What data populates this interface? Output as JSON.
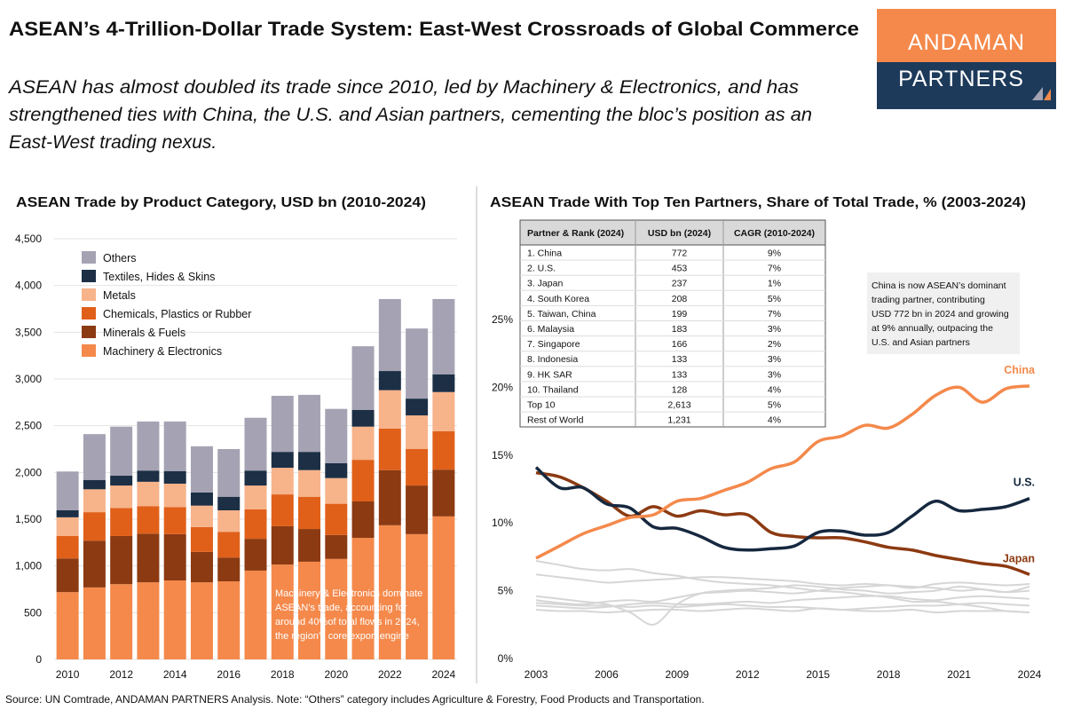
{
  "title": "ASEAN’s 4-Trillion-Dollar Trade System: East-West Crossroads of Global Commerce",
  "subtitle": [
    "ASEAN has almost doubled its trade since 2010, led by Machinery & Electronics, and has",
    "strengthened ties with China, the U.S. and Asian partners, cementing the bloc’s position as an",
    "East-West trading nexus."
  ],
  "logo": [
    "ANDAMAN",
    "PARTNERS"
  ],
  "source": "Source: UN Comtrade, ANDAMAN PARTNERS Analysis. Note: “Others” category includes Agriculture & Forestry, Food Products and Transportation.",
  "table": {
    "columns": [
      "Partner & Rank (2024)",
      "USD bn (2024)",
      "CAGR (2010-2024)"
    ],
    "rows": [
      [
        "1. China",
        "772",
        "9%"
      ],
      [
        "2. U.S.",
        "453",
        "7%"
      ],
      [
        "3. Japan",
        "237",
        "1%"
      ],
      [
        "4. South Korea",
        "208",
        "5%"
      ],
      [
        "5. Taiwan, China",
        "199",
        "7%"
      ],
      [
        "6. Malaysia",
        "183",
        "3%"
      ],
      [
        "7. Singapore",
        "166",
        "2%"
      ],
      [
        "8. Indonesia",
        "133",
        "3%"
      ],
      [
        "9. HK SAR",
        "133",
        "3%"
      ],
      [
        "10. Thailand",
        "128",
        "4%"
      ],
      [
        "Top 10",
        "2,613",
        "5%"
      ],
      [
        "Rest of World",
        "1,231",
        "4%"
      ]
    ]
  },
  "chart_data": [
    {
      "type": "stacked-bar",
      "title": "ASEAN Trade by Product Category, USD bn (2010-2024)",
      "categories": [
        2010,
        null,
        2012,
        null,
        2014,
        null,
        2016,
        null,
        2018,
        null,
        2020,
        null,
        2022,
        null,
        2024
      ],
      "series": [
        {
          "name": "Machinery & Electronics",
          "color": "#f4894b",
          "values": [
            720,
            770,
            805,
            825,
            845,
            825,
            835,
            950,
            1015,
            1045,
            1075,
            1300,
            1435,
            1340,
            1530
          ]
        },
        {
          "name": "Minerals & Fuels",
          "color": "#8c3a12",
          "values": [
            360,
            500,
            515,
            520,
            495,
            325,
            255,
            340,
            410,
            350,
            255,
            390,
            590,
            520,
            500
          ]
        },
        {
          "name": "Chemicals, Plastics or Rubber",
          "color": "#e0601a",
          "values": [
            240,
            305,
            300,
            295,
            290,
            265,
            275,
            315,
            340,
            345,
            335,
            445,
            445,
            390,
            410
          ]
        },
        {
          "name": "Metals",
          "color": "#f7b38a",
          "values": [
            200,
            245,
            240,
            260,
            250,
            230,
            230,
            255,
            285,
            285,
            275,
            355,
            410,
            360,
            420
          ]
        },
        {
          "name": "Textiles, Hides & Skins",
          "color": "#1c2f45",
          "values": [
            75,
            100,
            105,
            120,
            135,
            140,
            145,
            160,
            170,
            195,
            160,
            180,
            205,
            180,
            190
          ]
        },
        {
          "name": "Others",
          "color": "#a5a3b3",
          "values": [
            415,
            490,
            525,
            525,
            530,
            495,
            510,
            565,
            600,
            610,
            580,
            680,
            770,
            750,
            805
          ]
        }
      ],
      "ylim": [
        0,
        4500
      ],
      "yticks": [
        0,
        500,
        {
          "value": 1000,
          "label": "1,000"
        },
        {
          "value": 1500,
          "label": "1,500"
        },
        {
          "value": 2000,
          "label": "2,000"
        },
        {
          "value": 2500,
          "label": "2,500"
        },
        {
          "value": 3000,
          "label": "3,000"
        },
        {
          "value": 3500,
          "label": "3,500"
        },
        {
          "value": 4000,
          "label": "4,000"
        },
        {
          "value": 4500,
          "label": "4,500"
        }
      ],
      "grid": true,
      "legend": "top-left",
      "annotation": [
        "Machinery & Electronics dominate",
        "ASEAN’s trade, accounting for",
        "around 40%of total flows in 2024,",
        "the region’s core export engine"
      ]
    },
    {
      "type": "line",
      "title": "ASEAN Trade With Top Ten Partners, Share of Total Trade, % (2003-2024)",
      "x": [
        2003,
        2004,
        2005,
        2006,
        2007,
        2008,
        2009,
        2010,
        2011,
        2012,
        2013,
        2014,
        2015,
        2016,
        2017,
        2018,
        2019,
        2020,
        2021,
        2022,
        2023,
        2024
      ],
      "series": [
        {
          "color": "#d6d6d6",
          "values": [
            7.2,
            6.9,
            6.6,
            6.5,
            6.6,
            6.3,
            6.1,
            5.8,
            5.6,
            5.5,
            5.4,
            5.2,
            5.0,
            4.9,
            4.7,
            4.5,
            4.2,
            4.2,
            4.0,
            3.8,
            3.5,
            3.4
          ]
        },
        {
          "color": "#d6d6d6",
          "values": [
            6.2,
            6.0,
            5.8,
            5.6,
            5.7,
            5.8,
            5.9,
            6.0,
            6.0,
            5.9,
            5.8,
            5.7,
            5.5,
            5.4,
            5.5,
            5.4,
            5.3,
            5.2,
            5.0,
            5.1,
            4.9,
            5.0
          ]
        },
        {
          "color": "#d6d6d6",
          "values": [
            4.6,
            4.4,
            4.2,
            4.0,
            3.4,
            2.5,
            4.0,
            4.8,
            5.0,
            5.1,
            5.2,
            5.4,
            5.3,
            5.1,
            5.0,
            4.8,
            4.9,
            5.0,
            5.3,
            5.1,
            4.9,
            5.3
          ]
        },
        {
          "color": "#d6d6d6",
          "values": [
            4.3,
            4.1,
            4.0,
            4.2,
            4.3,
            4.2,
            4.5,
            4.8,
            4.9,
            5.0,
            4.9,
            4.8,
            5.0,
            5.2,
            5.3,
            5.4,
            5.2,
            5.5,
            5.6,
            5.5,
            5.4,
            5.5
          ]
        },
        {
          "color": "#d6d6d6",
          "values": [
            3.9,
            3.8,
            3.7,
            3.8,
            4.0,
            4.1,
            4.0,
            4.0,
            4.1,
            4.2,
            4.1,
            4.3,
            4.4,
            4.5,
            4.6,
            4.6,
            4.4,
            4.3,
            4.5,
            4.6,
            4.5,
            4.4
          ]
        },
        {
          "color": "#d6d6d6",
          "values": [
            4.1,
            4.0,
            3.9,
            3.9,
            3.8,
            3.9,
            3.8,
            3.9,
            4.0,
            3.9,
            3.8,
            3.8,
            3.7,
            3.6,
            3.7,
            3.8,
            3.9,
            3.9,
            4.0,
            4.1,
            4.0,
            3.9
          ]
        },
        {
          "color": "#d6d6d6",
          "values": [
            3.6,
            3.5,
            3.5,
            3.4,
            3.5,
            3.6,
            3.6,
            3.5,
            3.6,
            3.7,
            3.6,
            3.5,
            3.7,
            3.6,
            3.5,
            3.5,
            3.6,
            3.4,
            3.5,
            3.5,
            3.5,
            3.4
          ]
        },
        {
          "name": "Japan",
          "color": "#8c3a12",
          "values": [
            13.7,
            13.4,
            12.6,
            11.6,
            10.5,
            11.2,
            10.5,
            10.9,
            10.6,
            10.6,
            9.3,
            9.0,
            8.9,
            8.9,
            8.6,
            8.2,
            8.0,
            7.6,
            7.3,
            7.0,
            6.8,
            6.2
          ]
        },
        {
          "name": "U.S.",
          "color": "#16283f",
          "values": [
            14.1,
            12.6,
            12.6,
            11.4,
            11.1,
            9.7,
            9.6,
            9.0,
            8.2,
            8.0,
            8.1,
            8.3,
            9.3,
            9.4,
            9.1,
            9.3,
            10.5,
            11.6,
            10.9,
            11.0,
            11.2,
            11.8
          ]
        },
        {
          "name": "China",
          "color": "#f4894b",
          "values": [
            7.4,
            8.3,
            9.2,
            9.8,
            10.4,
            10.6,
            11.6,
            11.8,
            12.4,
            13.0,
            14.0,
            14.5,
            16.0,
            16.4,
            17.2,
            17.0,
            18.0,
            19.4,
            20.0,
            18.9,
            19.9,
            20.1
          ]
        }
      ],
      "xlim": [
        2003,
        2024
      ],
      "xticks": [
        2003,
        2006,
        2009,
        2012,
        2015,
        2018,
        2021,
        2024
      ],
      "ylim": [
        0,
        30
      ],
      "yticks": [
        {
          "value": 0,
          "label": "0%"
        },
        {
          "value": 5,
          "label": "5%"
        },
        {
          "value": 10,
          "label": "10%"
        },
        {
          "value": 15,
          "label": "15%"
        },
        {
          "value": 20,
          "label": "20%"
        },
        {
          "value": 25,
          "label": "25%"
        }
      ],
      "grid": false,
      "annotation": [
        "China is now ASEAN’s dominant",
        "trading partner, contributing",
        "USD 772 bn in 2024 and growing",
        "at 9% annually, outpacing the",
        "U.S. and Asian partners"
      ]
    }
  ]
}
